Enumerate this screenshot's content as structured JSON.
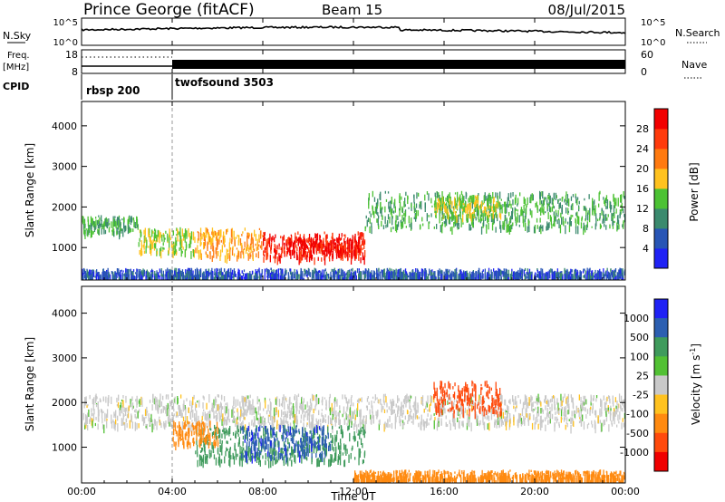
{
  "header": {
    "station": "Prince George (fitACF)",
    "beam": "Beam 15",
    "date": "08/Jul/2015"
  },
  "top_panels": {
    "nsky": {
      "label": "N.Sky",
      "tick_high": "10^5",
      "tick_low": "10^0"
    },
    "nsearch": {
      "label": "N.Search",
      "tick_high": "10^5",
      "tick_low": "10^0"
    },
    "freq": {
      "label_line1": "Freq.",
      "label_line2": "[MHz]",
      "tick_high": "18",
      "tick_low": "8"
    },
    "nave": {
      "label": "Nave",
      "tick_high": "60",
      "tick_low": "0"
    },
    "cpid": {
      "label": "CPID",
      "modes": [
        {
          "name": "rbsp 200",
          "start_hour": 0
        },
        {
          "name": "twofsound 3503",
          "start_hour": 4
        }
      ]
    }
  },
  "chart_data": [
    {
      "type": "heatmap",
      "name": "Power",
      "ylabel": "Slant Range [km]",
      "xlim": [
        0,
        24
      ],
      "ylim": [
        200,
        4600
      ],
      "yticks": [
        1000,
        2000,
        3000,
        4000
      ],
      "colorbar": {
        "label": "Power [dB]",
        "ticks": [
          "4",
          "8",
          "12",
          "16",
          "20",
          "24",
          "28"
        ],
        "range": [
          0,
          32
        ],
        "colors": [
          "#1f22f5",
          "#2855b5",
          "#3b8a6e",
          "#4cc234",
          "#ffc21f",
          "#ff7a10",
          "#ff3b0c",
          "#f20000"
        ]
      },
      "regions": [
        {
          "hours": [
            0,
            2.5
          ],
          "km": [
            1400,
            1800
          ],
          "level": 12
        },
        {
          "hours": [
            2.5,
            5
          ],
          "km": [
            900,
            1500
          ],
          "level": 16
        },
        {
          "hours": [
            5,
            8
          ],
          "km": [
            800,
            1500
          ],
          "level": 20
        },
        {
          "hours": [
            8,
            12.5
          ],
          "km": [
            750,
            1400
          ],
          "level": 28
        },
        {
          "hours": [
            9,
            12.3
          ],
          "km": [
            900,
            1250
          ],
          "level": 30
        },
        {
          "hours": [
            12.5,
            24
          ],
          "km": [
            1500,
            2400
          ],
          "level": 12
        },
        {
          "hours": [
            15.5,
            18.5
          ],
          "km": [
            1800,
            2300
          ],
          "level": 16
        },
        {
          "hours": [
            0,
            24
          ],
          "km": [
            200,
            500
          ],
          "level": 6
        }
      ]
    },
    {
      "type": "heatmap",
      "name": "Velocity",
      "xlabel": "Time UT",
      "ylabel": "Slant Range [km]",
      "xlim": [
        0,
        24
      ],
      "ylim": [
        200,
        4600
      ],
      "yticks": [
        1000,
        2000,
        3000,
        4000
      ],
      "xticks": [
        "00:00",
        "04:00",
        "08:00",
        "12:00",
        "16:00",
        "20:00",
        "00:00"
      ],
      "colorbar": {
        "label": "Velocity [m s",
        "label_sup": "-1",
        "ticks": [
          "1000",
          "500",
          "100",
          "25",
          "-25",
          "-100",
          "-500",
          "-1000"
        ],
        "colors": [
          "#1f22f5",
          "#2c5fb1",
          "#3f9b5c",
          "#52c134",
          "#c9c9c9",
          "#ffc21f",
          "#ff8a10",
          "#ff4a0c",
          "#f00000"
        ]
      },
      "regions": [
        {
          "hours": [
            0,
            24
          ],
          "km": [
            1500,
            2200
          ],
          "vel": 0
        },
        {
          "hours": [
            5,
            12.5
          ],
          "km": [
            700,
            1500
          ],
          "vel": 150
        },
        {
          "hours": [
            7,
            11
          ],
          "km": [
            800,
            1500
          ],
          "vel": 600
        },
        {
          "hours": [
            4,
            6
          ],
          "km": [
            1100,
            1600
          ],
          "vel": -150
        },
        {
          "hours": [
            15.5,
            18.5
          ],
          "km": [
            1800,
            2500
          ],
          "vel": -500
        },
        {
          "hours": [
            12,
            24
          ],
          "km": [
            200,
            500
          ],
          "vel": -100
        }
      ]
    }
  ]
}
